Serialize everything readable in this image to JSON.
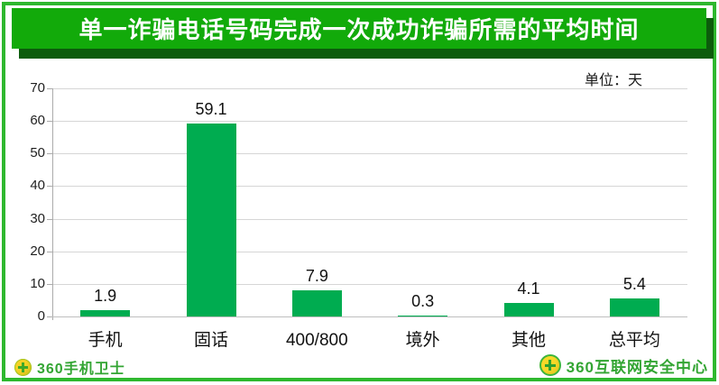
{
  "banner": {
    "title": "单一诈骗电话号码完成一次成功诈骗所需的平均时间"
  },
  "chart_data": {
    "type": "bar",
    "title": "单一诈骗电话号码完成一次成功诈骗所需的平均时间",
    "unit_label": "单位：天",
    "categories": [
      "手机",
      "固话",
      "400/800",
      "境外",
      "其他",
      "总平均"
    ],
    "values": [
      1.9,
      59.1,
      7.9,
      0.3,
      4.1,
      5.4
    ],
    "value_labels": [
      "1.9",
      "59.1",
      "7.9",
      "0.3",
      "4.1",
      "5.4"
    ],
    "xlabel": "",
    "ylabel": "",
    "ylim": [
      0,
      70
    ],
    "ytick_step": 10,
    "yticks": [
      0,
      10,
      20,
      30,
      40,
      50,
      60,
      70
    ],
    "grid": true,
    "legend": false,
    "bar_color": "#00AC50"
  },
  "footer": {
    "left_logo": {
      "text": "360手机卫士"
    },
    "right_logo": {
      "text": "360互联网安全中心"
    }
  },
  "colors": {
    "frame_green": "#2EB82E",
    "banner_green": "#12AA0A",
    "banner_shadow": "#0C5C0C",
    "bar_green": "#00AC50",
    "logo_green": "#33A533",
    "gridline_gray": "#D6D6D6",
    "axis_gray": "#ABABAB"
  }
}
